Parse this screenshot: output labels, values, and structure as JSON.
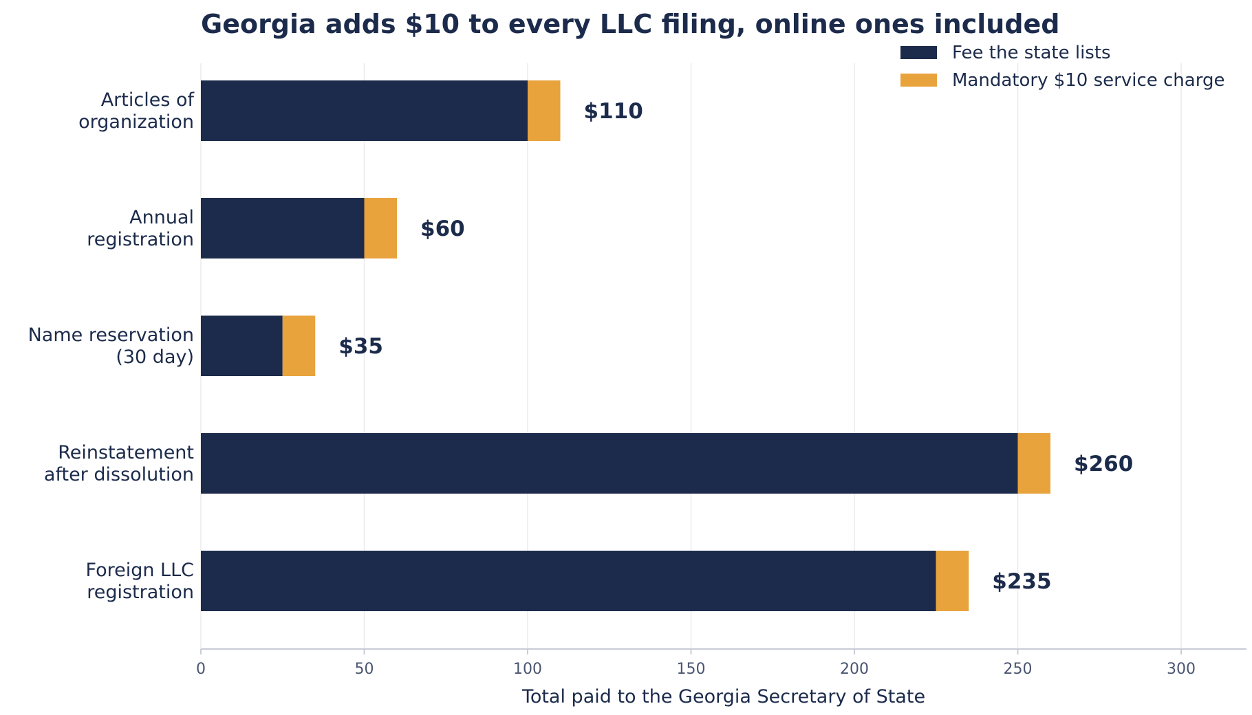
{
  "chart_data": {
    "type": "bar",
    "orientation": "horizontal",
    "stacked": true,
    "title": "Georgia adds $10 to every LLC filing, online ones included",
    "xlabel": "Total paid to the Georgia Secretary of State",
    "ylabel": "",
    "xlim": [
      0,
      320
    ],
    "xticks": [
      0,
      50,
      100,
      150,
      200,
      250,
      300
    ],
    "grid": "vertical",
    "legend_position": "top-right",
    "categories": [
      [
        "Articles of",
        "organization"
      ],
      [
        "Annual",
        "registration"
      ],
      [
        "Name reservation",
        "(30 day)"
      ],
      [
        "Reinstatement",
        "after dissolution"
      ],
      [
        "Foreign LLC",
        "registration"
      ]
    ],
    "series": [
      {
        "name": "Fee the state lists",
        "color": "#1c2b4b",
        "values": [
          100,
          50,
          25,
          250,
          225
        ]
      },
      {
        "name": "Mandatory $10 service charge",
        "color": "#e8a33d",
        "values": [
          10,
          10,
          10,
          10,
          10
        ]
      }
    ],
    "total_labels": [
      "$110",
      "$60",
      "$35",
      "$260",
      "$235"
    ]
  },
  "colors": {
    "text": "#1c2b4b",
    "tick_text": "#4a5570",
    "grid": "#ebebeb",
    "axis": "#c8ccd6"
  }
}
